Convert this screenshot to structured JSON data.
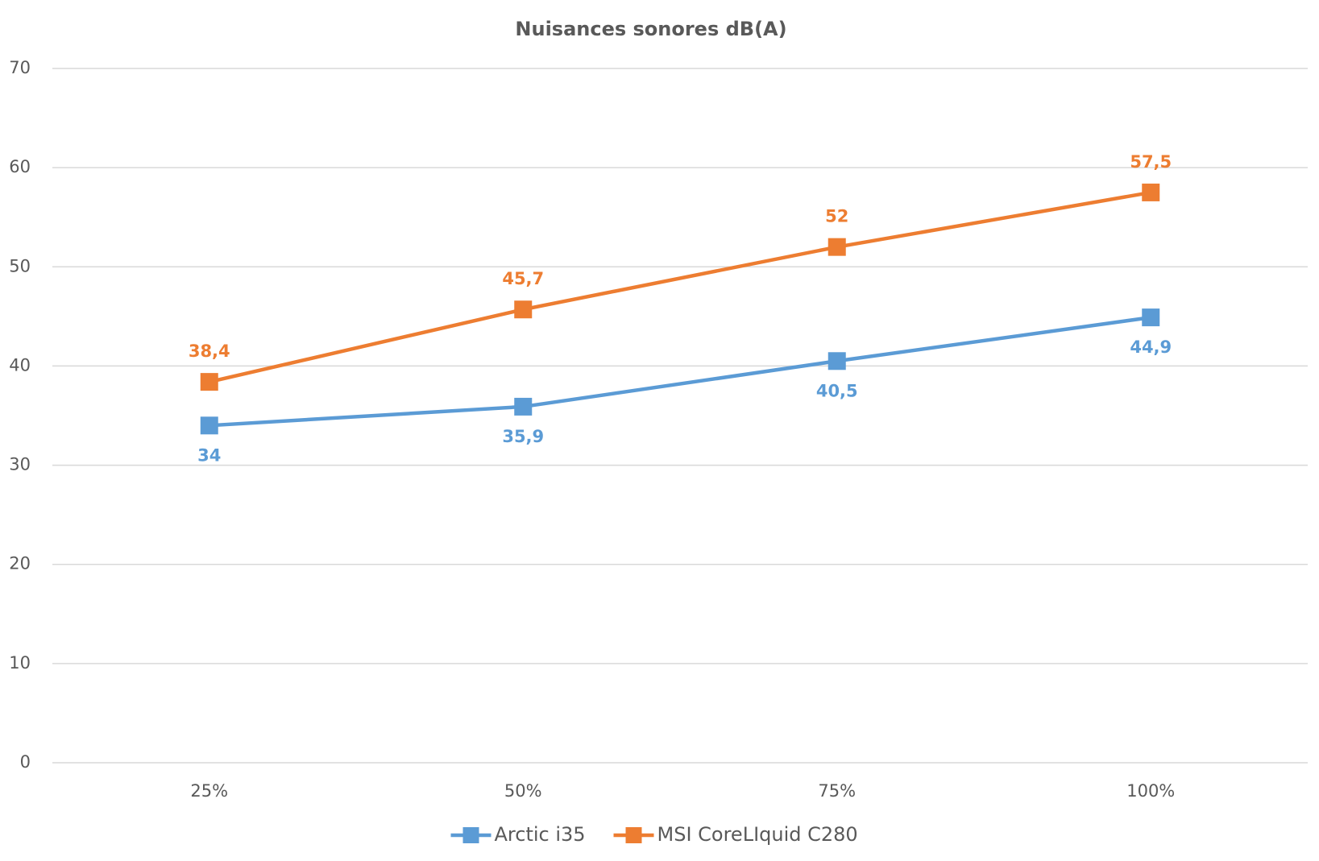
{
  "chart_data": {
    "type": "line",
    "title": "Nuisances sonores dB(A)",
    "categories": [
      "25%",
      "50%",
      "75%",
      "100%"
    ],
    "series": [
      {
        "name": "Arctic i35",
        "color": "#5b9bd5",
        "values": [
          34,
          35.9,
          40.5,
          44.9
        ],
        "value_labels": [
          "34",
          "35,9",
          "40,5",
          "44,9"
        ]
      },
      {
        "name": "MSI CoreLIquid C280",
        "color": "#ed7d31",
        "values": [
          38.4,
          45.7,
          52,
          57.5
        ],
        "value_labels": [
          "38,4",
          "45,7",
          "52",
          "57,5"
        ]
      }
    ],
    "ylim": [
      0,
      70
    ],
    "yticks": [
      0,
      10,
      20,
      30,
      40,
      50,
      60,
      70
    ],
    "grid": true,
    "legend": "bottom"
  }
}
